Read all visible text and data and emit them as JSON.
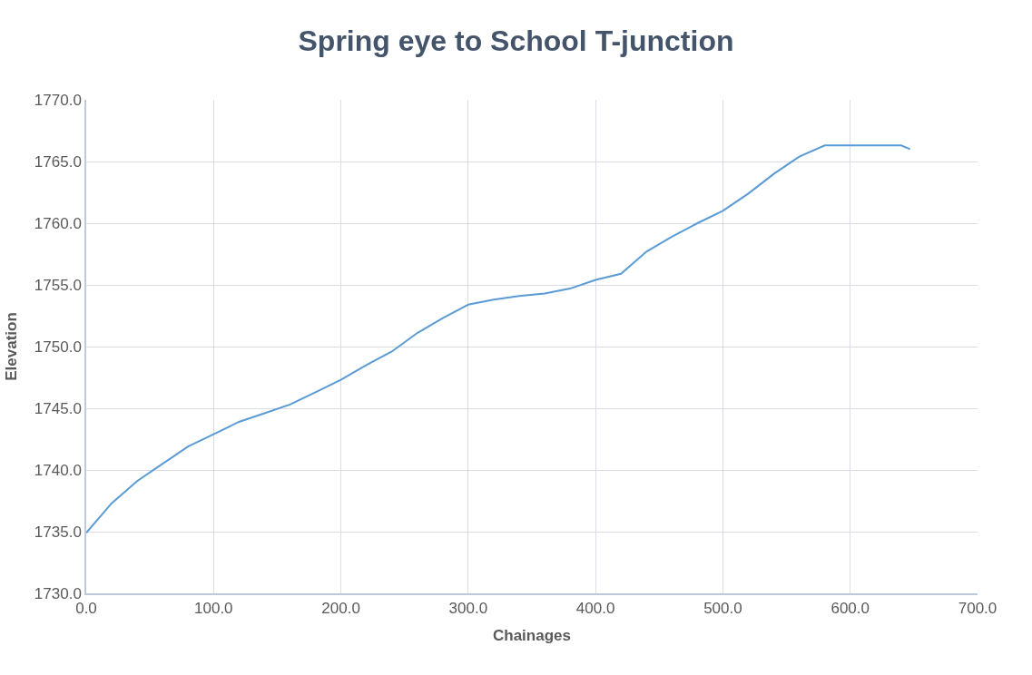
{
  "chart_data": {
    "type": "line",
    "title": "Spring eye to School T-junction",
    "xlabel": "Chainages",
    "ylabel": "Elevation",
    "x": [
      0,
      20,
      40,
      60,
      80,
      100,
      120,
      140,
      160,
      180,
      200,
      220,
      240,
      260,
      280,
      300,
      320,
      340,
      360,
      380,
      400,
      420,
      440,
      460,
      480,
      500,
      520,
      540,
      560,
      580,
      600,
      620,
      640,
      647
    ],
    "series": [
      {
        "color": "#5b9bd5",
        "values": [
          1734.9,
          1737.3,
          1739.1,
          1740.5,
          1741.9,
          1742.9,
          1743.9,
          1744.6,
          1745.3,
          1746.3,
          1747.3,
          1748.5,
          1749.6,
          1751.1,
          1752.3,
          1753.4,
          1753.8,
          1754.1,
          1754.3,
          1754.7,
          1755.4,
          1755.9,
          1757.7,
          1758.9,
          1760.0,
          1761.0,
          1762.4,
          1764.0,
          1765.4,
          1766.3,
          1766.3,
          1766.3,
          1766.3,
          1766.0
        ]
      }
    ],
    "xlim": [
      0,
      700
    ],
    "xticks": [
      {
        "value": 0,
        "label": "0.0"
      },
      {
        "value": 100,
        "label": "100.0"
      },
      {
        "value": 200,
        "label": "200.0"
      },
      {
        "value": 300,
        "label": "300.0"
      },
      {
        "value": 400,
        "label": "400.0"
      },
      {
        "value": 500,
        "label": "500.0"
      },
      {
        "value": 600,
        "label": "600.0"
      },
      {
        "value": 700,
        "label": "700.0"
      }
    ],
    "ylim": [
      1730,
      1770
    ],
    "yticks": [
      {
        "value": 1730,
        "label": "1730.0"
      },
      {
        "value": 1735,
        "label": "1735.0"
      },
      {
        "value": 1740,
        "label": "1740.0"
      },
      {
        "value": 1745,
        "label": "1745.0"
      },
      {
        "value": 1750,
        "label": "1750.0"
      },
      {
        "value": 1755,
        "label": "1755.0"
      },
      {
        "value": 1760,
        "label": "1760.0"
      },
      {
        "value": 1765,
        "label": "1765.0"
      },
      {
        "value": 1770,
        "label": "1770.0"
      }
    ],
    "grid": true,
    "marker": "none",
    "line_style": "solid"
  }
}
